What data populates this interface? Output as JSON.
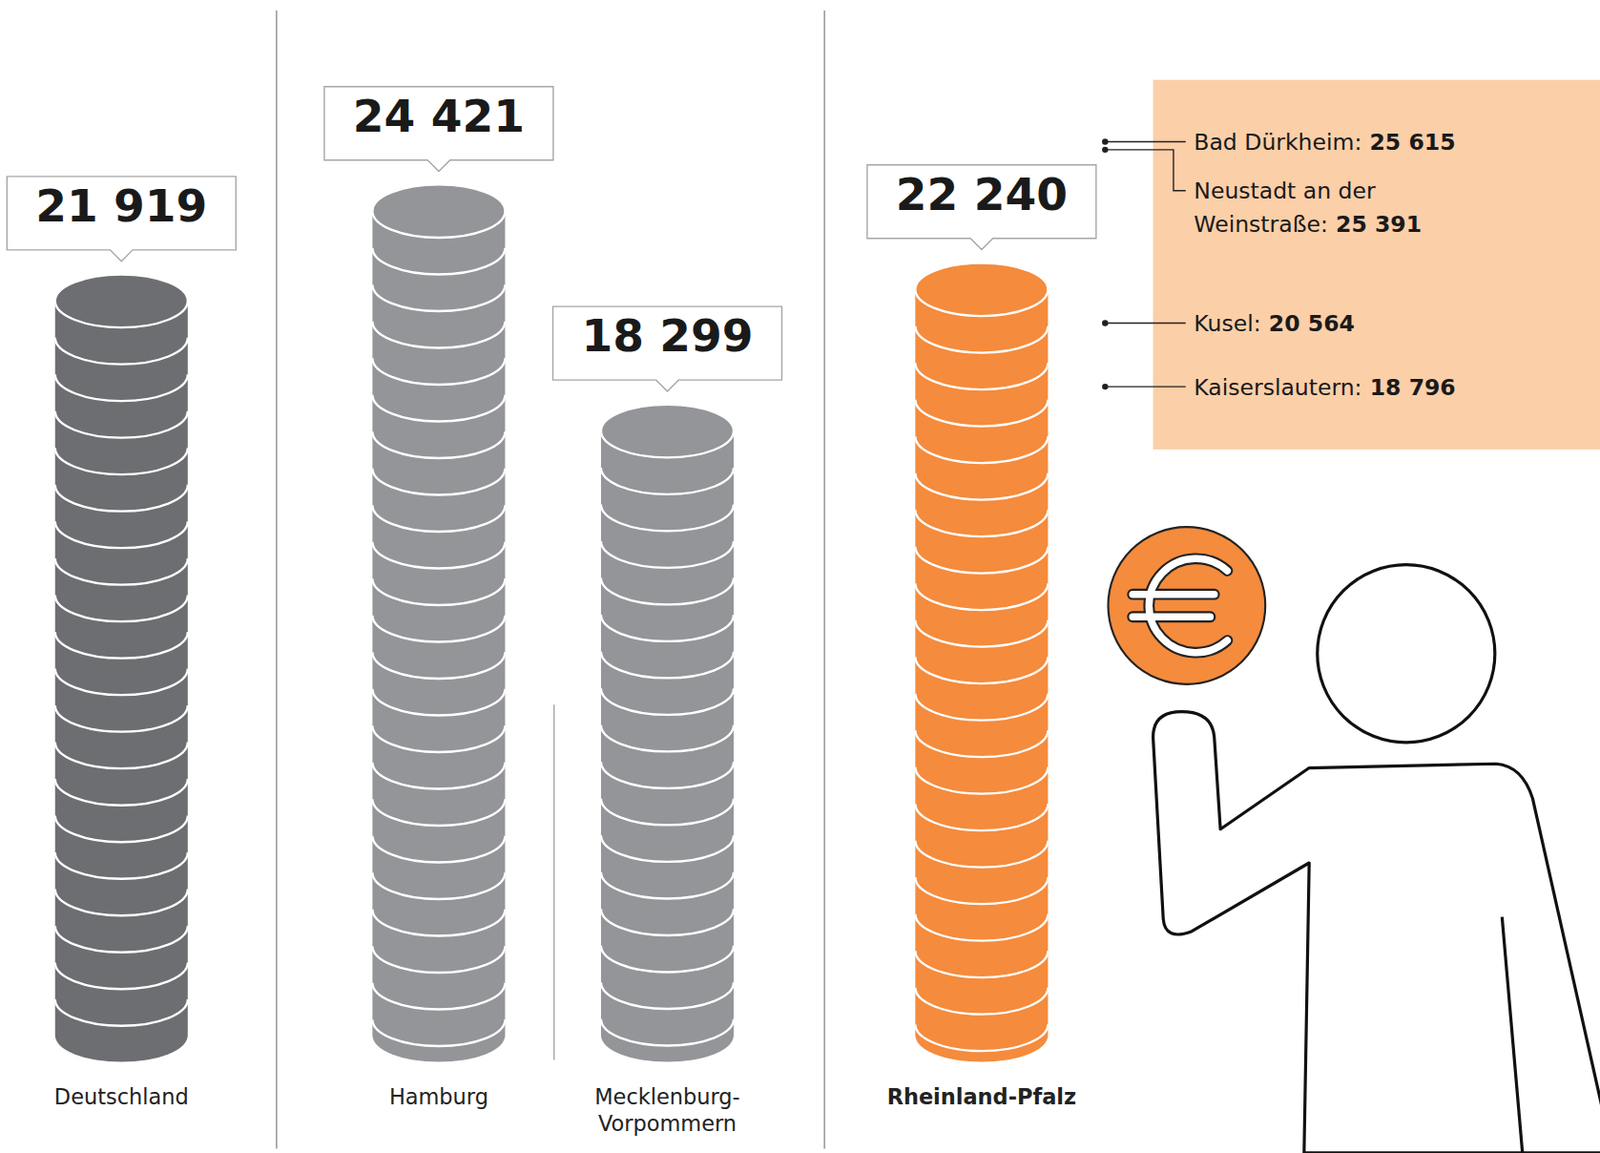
{
  "chart_data": {
    "type": "bar",
    "categories": [
      "Deutschland",
      "Hamburg",
      "Mecklenburg-Vorpommern",
      "Rheinland-Pfalz"
    ],
    "values": [
      21919,
      24421,
      18299,
      22240
    ],
    "value_labels": [
      "21 919",
      "24 421",
      "18 299",
      "22 240"
    ],
    "colors": [
      "#6d6e71",
      "#939598",
      "#939598",
      "#f58b3c"
    ],
    "ylim": [
      0,
      26000
    ],
    "data_labels": true,
    "tick_labels": false,
    "annotations": [
      {
        "label": "Bad Dürkheim:",
        "value": 25615,
        "value_label": "25 615"
      },
      {
        "label": "Neustadt an der Weinstraße:",
        "value": 25391,
        "value_label": "25 391"
      },
      {
        "label": "Kusel:",
        "value": 20564,
        "value_label": "20 564"
      },
      {
        "label": "Kaiserslautern:",
        "value": 18796,
        "value_label": "18 796"
      }
    ]
  }
}
